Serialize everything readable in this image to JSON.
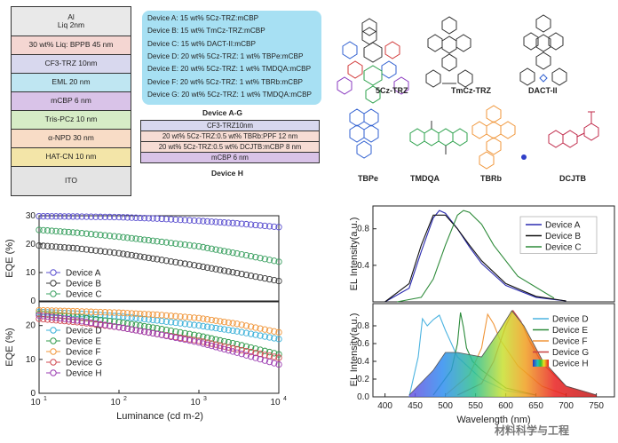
{
  "device_stack": {
    "layers": [
      {
        "label": "Al\nLiq 2nm",
        "color": "#e9e9e9"
      },
      {
        "label": "30 wt% Liq: BPPB 45 nm",
        "color": "#f4d6d2"
      },
      {
        "label": "CF3-TRZ 10nm",
        "color": "#d8d8ee"
      },
      {
        "label": "EML  20 nm",
        "color": "#bfe6f2"
      },
      {
        "label": "mCBP 6 nm",
        "color": "#d9c3e8"
      },
      {
        "label": "Tris-PCz 10 nm",
        "color": "#d6ecc6"
      },
      {
        "label": "α-NPD 30 nm",
        "color": "#f8dcc6"
      },
      {
        "label": "HAT-CN 10 nm",
        "color": "#f3e5a8"
      },
      {
        "label": "ITO",
        "color": "#e4e4e4"
      }
    ]
  },
  "device_list": {
    "items": [
      "Device A: 15 wt% 5Cz-TRZ:mCBP",
      "Device B: 15 wt% TmCz-TRZ:mCBP",
      "Device C: 15 wt% DACT-II:mCBP",
      "Device D: 20 wt% 5Cz-TRZ:  1 wt% TBPe:mCBP",
      "Device E: 20 wt% 5Cz-TRZ:  1 wt% TMDQA:mCBP",
      "Device F: 20 wt% 5Cz-TRZ:  1 wt% TBRb:mCBP",
      "Device G: 20 wt% 5Cz-TRZ:  1 wt% TMDQA:mCBP"
    ],
    "caption": "Device A-G"
  },
  "device_h": {
    "layers": [
      {
        "label": "CF3-TRZ10nm",
        "color": "#d8d8ee"
      },
      {
        "label": "20 wt% 5Cz-TRZ:0.5 wt% TBRb:PPF 12 nm",
        "color": "#f6dcd4"
      },
      {
        "label": "20 wt% 5Cz-TRZ:0.5 wt% DCJTB:mCBP 8 nm",
        "color": "#f6dcd4"
      },
      {
        "label": "mCBP 6 nm",
        "color": "#d9c3e8"
      }
    ],
    "caption": "Device H"
  },
  "molecules": [
    "5Cz-TRZ",
    "TmCz-TRZ",
    "DACT-II",
    "TBPe",
    "TMDQA",
    "TBRb",
    "DCJTB"
  ],
  "chart_data": [
    {
      "type": "scatter",
      "ylabel": "EQE (%)",
      "xlabel": "",
      "xscale": "log",
      "xlim": [
        10,
        10000
      ],
      "ylim": [
        0,
        30
      ],
      "yticks": [
        "0",
        "10",
        "20",
        "30"
      ],
      "series": [
        {
          "name": "Device A",
          "color": "#5a4fcf",
          "x": [
            10,
            30,
            100,
            300,
            1000,
            3000,
            10000
          ],
          "y": [
            29.8,
            29.7,
            29.5,
            29.0,
            28.2,
            27.3,
            26.0
          ]
        },
        {
          "name": "Device B",
          "color": "#3a3a3a",
          "x": [
            10,
            30,
            100,
            300,
            1000,
            3000,
            10000
          ],
          "y": [
            19.5,
            18.5,
            16.8,
            14.7,
            12.3,
            9.8,
            7.0
          ]
        },
        {
          "name": "Device C",
          "color": "#3aa060",
          "x": [
            10,
            30,
            100,
            300,
            1000,
            3000,
            10000
          ],
          "y": [
            25.0,
            24.0,
            22.6,
            21.0,
            19.2,
            16.7,
            13.8
          ]
        }
      ],
      "legend": "bottom-left"
    },
    {
      "type": "scatter",
      "ylabel": "EQE (%)",
      "xlabel": "Luminance (cd m-2)",
      "xscale": "log",
      "xlim": [
        10,
        10000
      ],
      "ylim": [
        0,
        27
      ],
      "yticks": [
        "0",
        "10",
        "20"
      ],
      "xticks": [
        "10^1",
        "10^2",
        "10^3",
        "10^4"
      ],
      "series": [
        {
          "name": "Device D",
          "color": "#3ab0d8",
          "x": [
            10,
            30,
            100,
            300,
            1000,
            3000,
            10000
          ],
          "y": [
            24.0,
            23.5,
            22.7,
            21.5,
            20.0,
            18.3,
            16.0
          ]
        },
        {
          "name": "Device E",
          "color": "#2f9a4a",
          "x": [
            10,
            30,
            100,
            300,
            1000,
            3000,
            10000
          ],
          "y": [
            23.5,
            22.5,
            21.0,
            19.2,
            17.0,
            14.5,
            11.5
          ]
        },
        {
          "name": "Device F",
          "color": "#f0963a",
          "x": [
            10,
            30,
            100,
            300,
            1000,
            3000,
            10000
          ],
          "y": [
            24.5,
            24.2,
            23.8,
            23.2,
            22.2,
            20.5,
            18.0
          ]
        },
        {
          "name": "Device G",
          "color": "#d04850",
          "x": [
            10,
            30,
            100,
            300,
            1000,
            3000,
            10000
          ],
          "y": [
            22.0,
            21.0,
            19.5,
            17.5,
            15.5,
            13.0,
            10.5
          ]
        },
        {
          "name": "Device H",
          "color": "#9a3ab0",
          "x": [
            10,
            30,
            100,
            300,
            1000,
            3000,
            10000
          ],
          "y": [
            23.0,
            21.5,
            19.5,
            17.5,
            15.0,
            12.0,
            8.5
          ]
        }
      ],
      "legend": "bottom-left"
    },
    {
      "type": "line",
      "ylabel": "EL Intensity(a.u.)",
      "xlim": [
        380,
        780
      ],
      "ylim": [
        0,
        1.05
      ],
      "yticks": [
        "0.4",
        "0.8"
      ],
      "series": [
        {
          "name": "Device A",
          "color": "#2b2bb0",
          "x": [
            400,
            440,
            460,
            480,
            490,
            500,
            520,
            540,
            560,
            600,
            650,
            700
          ],
          "y": [
            0.0,
            0.15,
            0.55,
            0.92,
            1.0,
            0.97,
            0.8,
            0.6,
            0.42,
            0.18,
            0.05,
            0.01
          ]
        },
        {
          "name": "Device B",
          "color": "#111111",
          "x": [
            400,
            440,
            460,
            480,
            500,
            520,
            540,
            560,
            600,
            650,
            700
          ],
          "y": [
            0.0,
            0.2,
            0.62,
            0.95,
            0.95,
            0.8,
            0.62,
            0.45,
            0.2,
            0.06,
            0.01
          ]
        },
        {
          "name": "Device C",
          "color": "#2e8b3a",
          "x": [
            420,
            460,
            480,
            500,
            520,
            530,
            540,
            560,
            580,
            620,
            680
          ],
          "y": [
            0.0,
            0.05,
            0.25,
            0.62,
            0.95,
            1.0,
            0.98,
            0.85,
            0.62,
            0.28,
            0.04
          ]
        }
      ],
      "legend": "top-right"
    },
    {
      "type": "area",
      "ylabel": "EL Intensity(a.u.)",
      "xlabel": "Wavelength (nm)",
      "xlim": [
        380,
        780
      ],
      "ylim": [
        0,
        1.05
      ],
      "yticks": [
        "0.0",
        "0.2",
        "0.4",
        "0.6",
        "0.8"
      ],
      "xticks": [
        "400",
        "450",
        "500",
        "550",
        "600",
        "650",
        "700",
        "750"
      ],
      "series": [
        {
          "name": "Device D",
          "color": "#4bb3e0",
          "x": [
            440,
            455,
            462,
            470,
            480,
            490,
            500,
            520,
            560,
            600,
            650
          ],
          "y": [
            0.0,
            0.45,
            0.88,
            0.8,
            0.87,
            0.92,
            0.75,
            0.45,
            0.2,
            0.07,
            0.02
          ]
        },
        {
          "name": "Device E",
          "color": "#2a8a3a",
          "x": [
            480,
            510,
            520,
            525,
            530,
            535,
            545,
            560,
            600,
            650
          ],
          "y": [
            0.02,
            0.3,
            0.6,
            0.95,
            0.78,
            0.55,
            0.4,
            0.3,
            0.1,
            0.02
          ]
        },
        {
          "name": "Device F",
          "color": "#f0963a",
          "x": [
            500,
            540,
            560,
            570,
            580,
            590,
            600,
            620,
            660,
            700
          ],
          "y": [
            0.02,
            0.25,
            0.55,
            0.93,
            0.82,
            0.65,
            0.55,
            0.35,
            0.12,
            0.02
          ]
        },
        {
          "name": "Device G",
          "color": "#c84040",
          "x": [
            520,
            560,
            580,
            600,
            612,
            625,
            640,
            660,
            700,
            750
          ],
          "y": [
            0.02,
            0.15,
            0.4,
            0.8,
            0.97,
            0.85,
            0.62,
            0.38,
            0.12,
            0.02
          ]
        },
        {
          "name": "Device H",
          "color": "#555555",
          "x": [
            440,
            480,
            500,
            520,
            560,
            590,
            610,
            630,
            660,
            700,
            750
          ],
          "y": [
            0.02,
            0.3,
            0.5,
            0.5,
            0.45,
            0.75,
            0.97,
            0.8,
            0.42,
            0.12,
            0.02
          ]
        }
      ],
      "legend": "top-right"
    }
  ],
  "watermark": "材料科学与工程"
}
